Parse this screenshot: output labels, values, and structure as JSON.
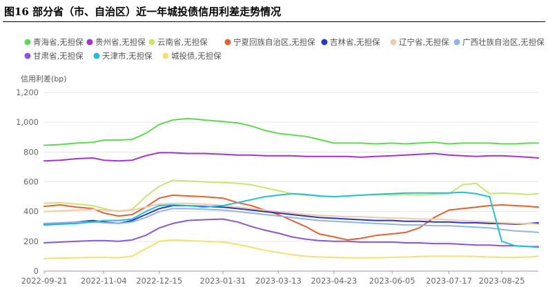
{
  "figure": {
    "title": "图16  部分省（市、自治区）近一年城投债信用利差走势情况"
  },
  "chart_data": {
    "type": "line",
    "title": "图16  部分省（市、自治区）近一年城投债信用利差走势情况",
    "ylabel": "信用利差(bp)",
    "xlabel": "",
    "ylim": [
      0,
      1200
    ],
    "yticks": [
      0,
      200,
      400,
      600,
      800,
      1000,
      1200
    ],
    "ytick_labels": [
      "0",
      "200",
      "400",
      "600",
      "800",
      "1,000",
      "1,200"
    ],
    "x_start": "2022-09-21",
    "x_end": "2023-09-21",
    "xtick_labels": [
      "2022-09-21",
      "2022-11-04",
      "2022-12-15",
      "2023-01-31",
      "2023-03-13",
      "2023-04-23",
      "2023-06-05",
      "2023-07-17",
      "2023-08-25"
    ],
    "grid": true,
    "legend_position": "top",
    "x": [
      "2022-09-21",
      "2022-10-03",
      "2022-10-15",
      "2022-10-27",
      "2022-11-04",
      "2022-11-15",
      "2022-11-25",
      "2022-12-05",
      "2022-12-15",
      "2022-12-25",
      "2023-01-05",
      "2023-01-17",
      "2023-01-31",
      "2023-02-11",
      "2023-02-21",
      "2023-03-03",
      "2023-03-13",
      "2023-03-23",
      "2023-04-02",
      "2023-04-12",
      "2023-04-23",
      "2023-05-03",
      "2023-05-13",
      "2023-05-24",
      "2023-06-05",
      "2023-06-15",
      "2023-06-25",
      "2023-07-06",
      "2023-07-17",
      "2023-07-27",
      "2023-08-06",
      "2023-08-16",
      "2023-08-25",
      "2023-09-04",
      "2023-09-14",
      "2023-09-21"
    ],
    "series": [
      {
        "name": "青海省,无担保",
        "color": "#5dd94f",
        "values": [
          845,
          850,
          860,
          865,
          880,
          880,
          885,
          925,
          985,
          1015,
          1025,
          1015,
          1005,
          995,
          975,
          945,
          925,
          915,
          905,
          885,
          860,
          860,
          860,
          855,
          860,
          855,
          860,
          865,
          855,
          860,
          860,
          860,
          855,
          855,
          860,
          860
        ]
      },
      {
        "name": "贵州省,无担保",
        "color": "#a333cc",
        "values": [
          740,
          745,
          755,
          760,
          745,
          740,
          745,
          775,
          795,
          795,
          790,
          790,
          785,
          780,
          780,
          775,
          775,
          775,
          770,
          770,
          770,
          770,
          765,
          770,
          775,
          780,
          785,
          790,
          780,
          775,
          770,
          775,
          775,
          770,
          765,
          760
        ]
      },
      {
        "name": "云南省,无担保",
        "color": "#c6e66d",
        "values": [
          455,
          460,
          450,
          440,
          420,
          400,
          415,
          500,
          570,
          610,
          605,
          600,
          595,
          590,
          580,
          560,
          540,
          520,
          510,
          505,
          500,
          505,
          510,
          515,
          510,
          515,
          510,
          515,
          520,
          580,
          590,
          520,
          525,
          520,
          515,
          520
        ]
      },
      {
        "name": "宁夏回族自治区,无担保",
        "color": "#e5602c",
        "values": [
          435,
          445,
          430,
          420,
          390,
          370,
          380,
          430,
          490,
          510,
          505,
          500,
          490,
          460,
          440,
          410,
          380,
          340,
          300,
          250,
          230,
          210,
          220,
          240,
          250,
          260,
          290,
          360,
          410,
          420,
          430,
          440,
          445,
          440,
          435,
          430
        ]
      },
      {
        "name": "吉林省,无担保",
        "color": "#2a35c6",
        "values": [
          315,
          320,
          330,
          340,
          330,
          320,
          340,
          380,
          420,
          440,
          440,
          435,
          430,
          420,
          410,
          400,
          390,
          380,
          370,
          360,
          355,
          350,
          345,
          340,
          340,
          335,
          335,
          330,
          330,
          325,
          325,
          320,
          320,
          315,
          320,
          325
        ]
      },
      {
        "name": "辽宁省,无担保",
        "color": "#f0c9a8",
        "values": [
          400,
          405,
          410,
          415,
          410,
          405,
          410,
          430,
          450,
          455,
          455,
          450,
          440,
          430,
          420,
          410,
          400,
          390,
          380,
          375,
          370,
          365,
          365,
          360,
          355,
          355,
          350,
          350,
          345,
          340,
          335,
          330,
          325,
          320,
          320,
          315
        ]
      },
      {
        "name": "广西壮族自治区,无担保",
        "color": "#8fb4e6",
        "values": [
          320,
          325,
          330,
          330,
          325,
          320,
          330,
          360,
          400,
          420,
          420,
          415,
          410,
          400,
          390,
          380,
          370,
          360,
          350,
          340,
          335,
          330,
          325,
          320,
          315,
          310,
          310,
          305,
          305,
          300,
          295,
          290,
          280,
          270,
          265,
          260
        ]
      },
      {
        "name": "甘肃省,无担保",
        "color": "#8a55d8",
        "values": [
          190,
          195,
          200,
          205,
          205,
          200,
          210,
          240,
          290,
          320,
          340,
          345,
          350,
          330,
          300,
          275,
          255,
          230,
          215,
          205,
          200,
          200,
          195,
          195,
          195,
          190,
          190,
          185,
          185,
          180,
          175,
          175,
          170,
          170,
          165,
          165
        ]
      },
      {
        "name": "天津市,无担保",
        "color": "#20bfd8",
        "values": [
          310,
          315,
          320,
          330,
          340,
          340,
          350,
          400,
          440,
          445,
          440,
          430,
          440,
          460,
          480,
          500,
          510,
          520,
          515,
          505,
          500,
          505,
          510,
          515,
          520,
          525,
          525,
          525,
          525,
          530,
          520,
          500,
          200,
          170,
          165,
          160
        ]
      },
      {
        "name": "城投债,无担保",
        "color": "#f2e170",
        "values": [
          85,
          88,
          90,
          92,
          92,
          90,
          100,
          150,
          200,
          210,
          205,
          200,
          195,
          180,
          160,
          140,
          125,
          110,
          100,
          95,
          92,
          90,
          90,
          90,
          92,
          95,
          98,
          100,
          100,
          100,
          98,
          95,
          92,
          92,
          95,
          100
        ]
      }
    ]
  }
}
